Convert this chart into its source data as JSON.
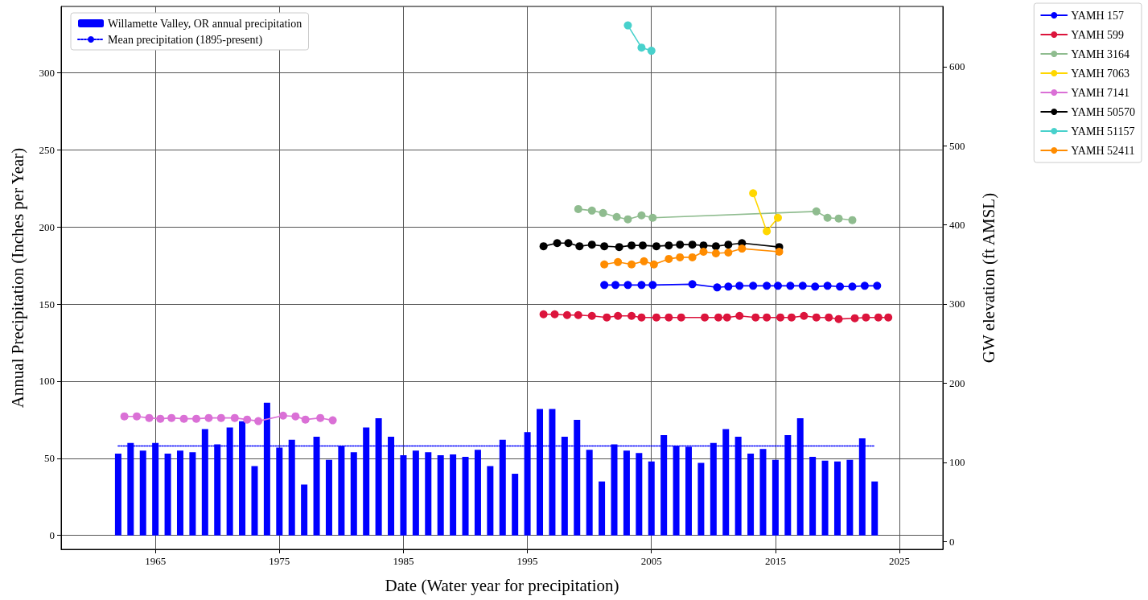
{
  "chart_data": {
    "type": "line",
    "xlabel": "Date (Water year for precipitation)",
    "ylabel": "Annual Precipitation (Inches per Year)",
    "y2label": "GW elevation (ft AMSL)",
    "xlim": [
      1957.4,
      2028.5
    ],
    "xticks": [
      1965,
      1975,
      1985,
      1995,
      2005,
      2015,
      2025
    ],
    "ylim": [
      -9,
      343
    ],
    "yticks": [
      0,
      50,
      100,
      150,
      200,
      250,
      300
    ],
    "y2lim": [
      -10,
      676
    ],
    "y2ticks": [
      0,
      100,
      200,
      300,
      400,
      500,
      600
    ],
    "grid": true,
    "legend": "top right",
    "marker": "circle",
    "line_style": "solid",
    "series": [
      {
        "name": "Willamette Valley, OR annual precipitation",
        "type": "bar",
        "color": "#0000ff",
        "x": [
          1962,
          1963,
          1964,
          1965,
          1966,
          1967,
          1968,
          1969,
          1970,
          1971,
          1972,
          1973,
          1974,
          1975,
          1976,
          1977,
          1978,
          1979,
          1980,
          1981,
          1982,
          1983,
          1984,
          1985,
          1986,
          1987,
          1988,
          1989,
          1990,
          1991,
          1992,
          1993,
          1994,
          1995,
          1996,
          1997,
          1998,
          1999,
          2000,
          2001,
          2002,
          2003,
          2004,
          2005,
          2006,
          2007,
          2008,
          2009,
          2010,
          2011,
          2012,
          2013,
          2014,
          2015,
          2016,
          2017,
          2018,
          2019,
          2020,
          2021,
          2022,
          2023
        ],
        "values": [
          53,
          60,
          55,
          60,
          53,
          55,
          54,
          69,
          59,
          70,
          74,
          45,
          86,
          57,
          62,
          33,
          64,
          49,
          58,
          54,
          70,
          76,
          64,
          52,
          55,
          54,
          52,
          52.5,
          51,
          55.5,
          45,
          62,
          40,
          67,
          82,
          82,
          64,
          75,
          55.5,
          35,
          59,
          55,
          53.5,
          48,
          65,
          58,
          57.5,
          47,
          60,
          69,
          64,
          53,
          56,
          49,
          65,
          76,
          51,
          48.5,
          48,
          49,
          63,
          35
        ]
      },
      {
        "name": "Mean precipitation (1895-present)",
        "type": "line",
        "color": "#0000ff",
        "marker": "none",
        "line_style": "dotted",
        "x": [
          1962,
          2023
        ],
        "values": [
          58,
          58
        ]
      },
      {
        "name": "YAMH 157",
        "axis": "y2",
        "color": "#0000ff",
        "x": [
          2001.2,
          2002.1,
          2003.1,
          2004.2,
          2005.1,
          2008.3,
          2010.3,
          2011.2,
          2012.1,
          2013.2,
          2014.3,
          2015.2,
          2016.2,
          2017.2,
          2018.2,
          2019.2,
          2020.2,
          2021.2,
          2022.2,
          2023.2
        ],
        "values": [
          324,
          324,
          324,
          324,
          324,
          325,
          321,
          322,
          323,
          323,
          323,
          323,
          323,
          323,
          322,
          323,
          322,
          322,
          323,
          323
        ]
      },
      {
        "name": "YAMH 599",
        "axis": "y2",
        "color": "#dc143c",
        "x": [
          1996.3,
          1997.2,
          1998.2,
          1999.1,
          2000.2,
          2001.4,
          2002.3,
          2003.4,
          2004.2,
          2005.4,
          2006.4,
          2007.4,
          2009.3,
          2010.4,
          2011.1,
          2012.1,
          2013.4,
          2014.3,
          2015.4,
          2016.3,
          2017.3,
          2018.3,
          2019.3,
          2020.1,
          2021.4,
          2022.3,
          2023.3,
          2024.1
        ],
        "values": [
          287,
          287,
          286,
          286,
          285,
          283,
          285,
          285,
          283,
          283,
          283,
          283,
          283,
          283,
          283,
          285,
          283,
          283,
          283,
          283,
          285,
          283,
          283,
          281,
          282,
          283,
          283,
          283
        ]
      },
      {
        "name": "YAMH 3164",
        "axis": "y2",
        "color": "#8fbc8f",
        "x": [
          1999.1,
          2000.2,
          2001.1,
          2002.2,
          2003.1,
          2004.2,
          2005.1,
          2018.3,
          2019.2,
          2020.1,
          2021.2
        ],
        "values": [
          420,
          418,
          415,
          410,
          407,
          412,
          409,
          417,
          409,
          408,
          406
        ]
      },
      {
        "name": "YAMH 7063",
        "axis": "y2",
        "color": "#ffd700",
        "x": [
          2013.2,
          2014.3,
          2015.2
        ],
        "values": [
          440,
          392,
          409
        ]
      },
      {
        "name": "YAMH 7141",
        "axis": "y2",
        "color": "#da70d6",
        "x": [
          1962.5,
          1963.5,
          1964.5,
          1965.4,
          1966.3,
          1967.3,
          1968.3,
          1969.3,
          1970.3,
          1971.4,
          1972.4,
          1973.3,
          1975.3,
          1976.3,
          1977.1,
          1978.3,
          1979.3
        ],
        "values": [
          158,
          158,
          156,
          155,
          156,
          155,
          155,
          156,
          156,
          156,
          154,
          152,
          159,
          158,
          154,
          156,
          153
        ]
      },
      {
        "name": "YAMH 50570",
        "axis": "y2",
        "color": "#000000",
        "x": [
          1996.3,
          1997.4,
          1998.3,
          1999.2,
          2000.2,
          2001.2,
          2002.4,
          2003.4,
          2004.3,
          2005.4,
          2006.4,
          2007.3,
          2008.3,
          2009.2,
          2010.2,
          2011.2,
          2012.3,
          2015.3
        ],
        "values": [
          373,
          377,
          377,
          373,
          375,
          373,
          372,
          374,
          374,
          373,
          374,
          375,
          375,
          374,
          373,
          375,
          377,
          372
        ]
      },
      {
        "name": "YAMH 51157",
        "axis": "y2",
        "color": "#48d1cc",
        "x": [
          2003.1,
          2004.2,
          2005.0
        ],
        "values": [
          652,
          624,
          620
        ]
      },
      {
        "name": "YAMH 52411",
        "axis": "y2",
        "color": "#ff8c00",
        "x": [
          2001.2,
          2002.3,
          2003.4,
          2004.4,
          2005.2,
          2006.4,
          2007.3,
          2008.3,
          2009.2,
          2010.2,
          2011.2,
          2012.3,
          2015.3
        ],
        "values": [
          350,
          353,
          350,
          354,
          350,
          357,
          359,
          359,
          366,
          364,
          365,
          370,
          366
        ]
      }
    ]
  }
}
